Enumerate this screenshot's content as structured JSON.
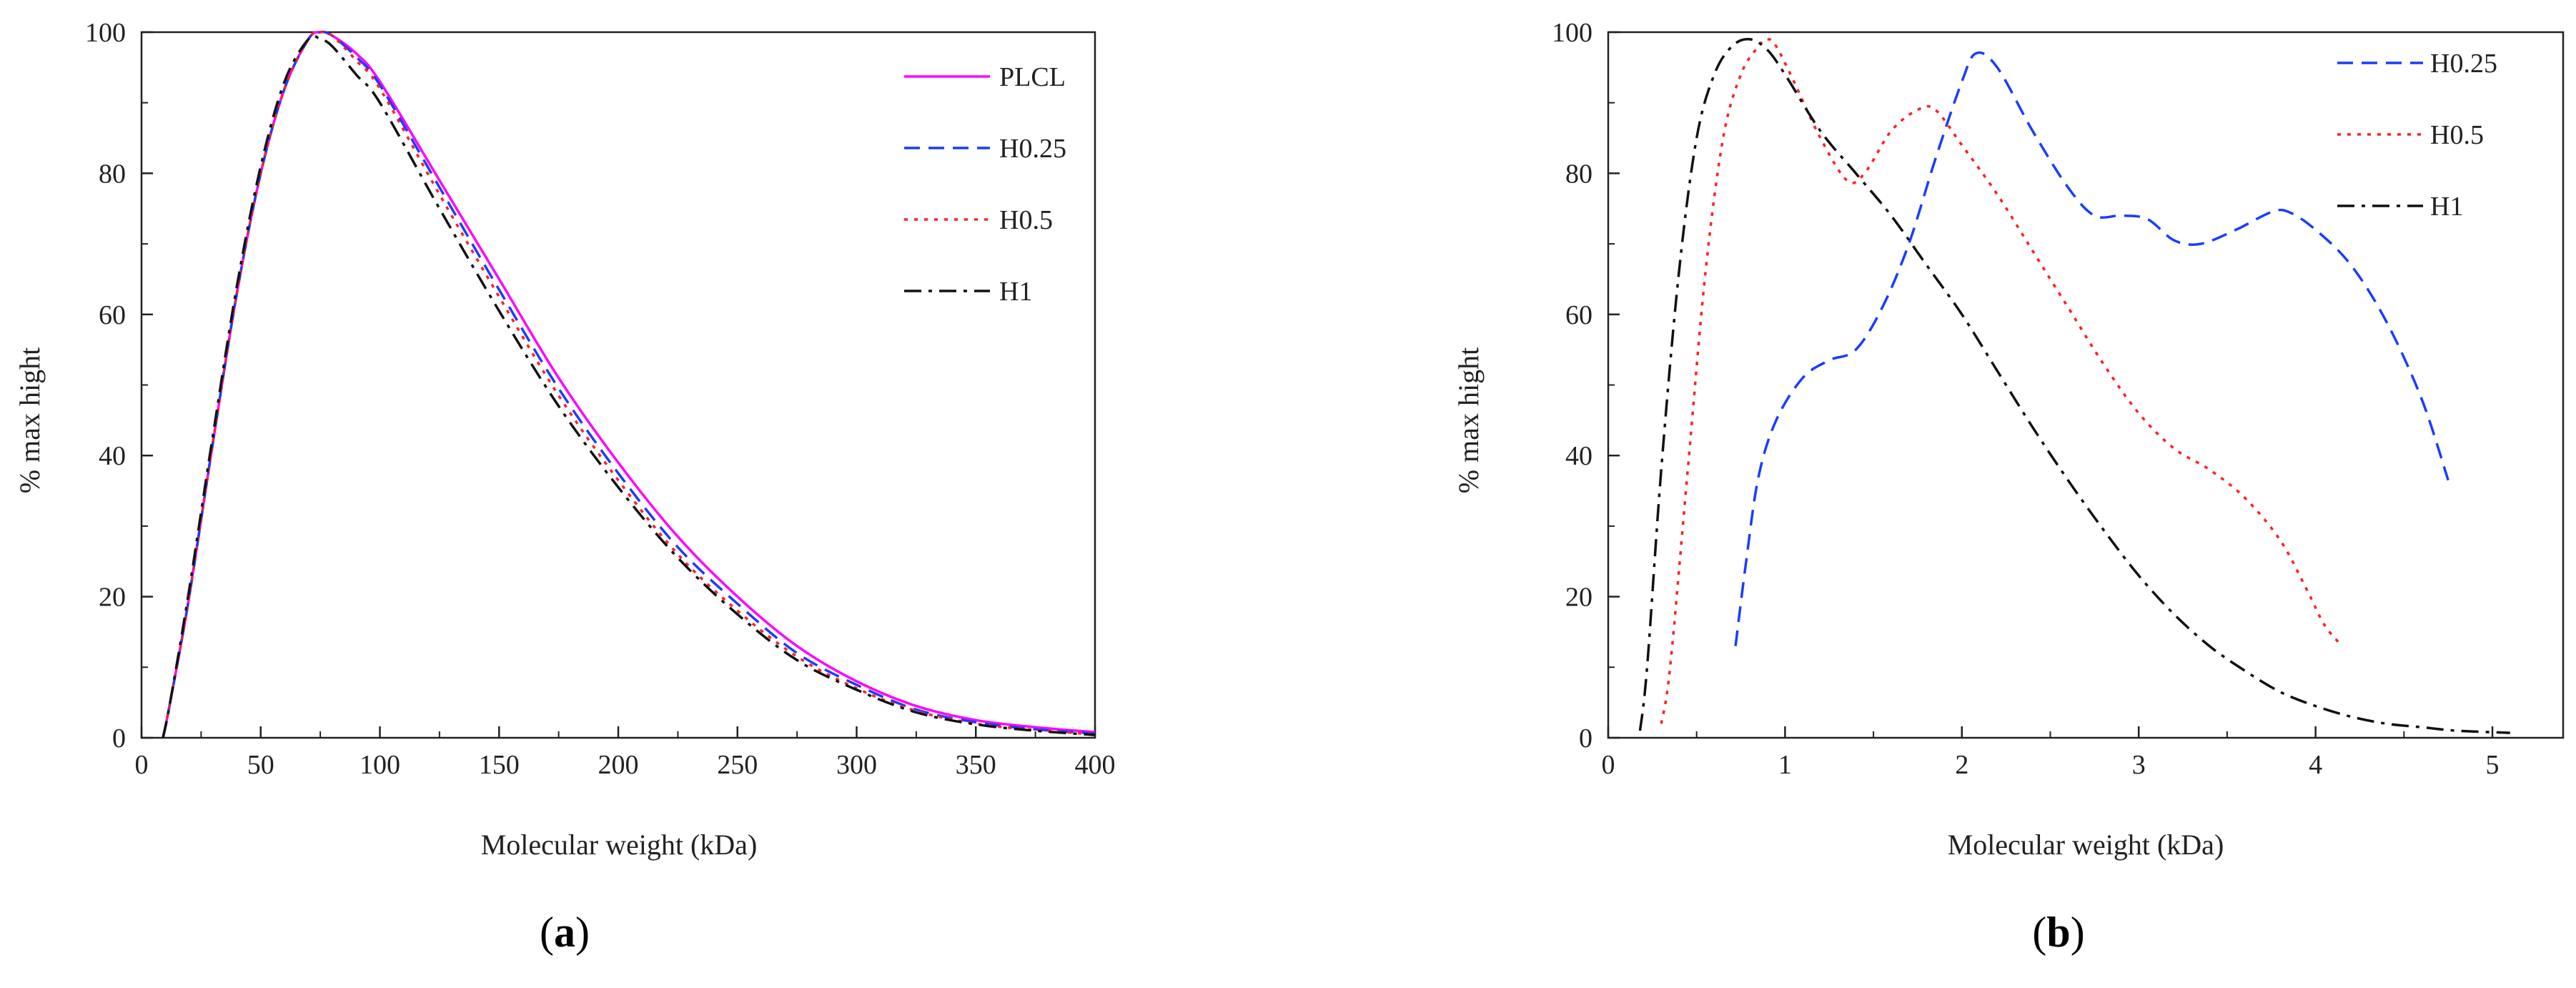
{
  "chart_data": [
    {
      "type": "line",
      "panel": "a",
      "xlabel": "Molecular weight (kDa)",
      "ylabel": "% max hight",
      "xlim": [
        0,
        400
      ],
      "ylim": [
        0,
        100
      ],
      "xticks": [
        0,
        50,
        100,
        150,
        200,
        250,
        300,
        350,
        400
      ],
      "yticks": [
        0,
        20,
        40,
        60,
        80,
        100
      ],
      "grid": false,
      "legend_position": "top-right",
      "series": [
        {
          "name": "PLCL",
          "color": "#ff00ff",
          "dash": "solid",
          "x": [
            9,
            12,
            20,
            30,
            40,
            50,
            60,
            70,
            75,
            80,
            90,
            100,
            125,
            150,
            175,
            200,
            225,
            250,
            275,
            300,
            325,
            350,
            375,
            400
          ],
          "y": [
            0,
            5,
            20,
            42,
            63,
            80,
            92,
            99,
            100,
            99.5,
            97,
            93,
            79,
            65,
            51,
            39,
            28.5,
            20,
            13,
            8,
            4.5,
            2.5,
            1.5,
            0.8
          ]
        },
        {
          "name": "H0.25",
          "color": "#1a3cff",
          "dash": "dashed",
          "x": [
            9,
            12,
            20,
            30,
            40,
            50,
            60,
            70,
            75,
            80,
            90,
            100,
            125,
            150,
            175,
            200,
            225,
            250,
            275,
            300,
            325,
            350,
            375,
            400
          ],
          "y": [
            0,
            5,
            20,
            42,
            63,
            80,
            92,
            99,
            100,
            99.5,
            96.5,
            92.5,
            78,
            63.5,
            49.5,
            37.5,
            27,
            19,
            12,
            7.5,
            4,
            2.2,
            1.2,
            0.6
          ]
        },
        {
          "name": "H0.5",
          "color": "#ff2020",
          "dash": "dotted",
          "x": [
            9,
            12,
            20,
            30,
            40,
            50,
            60,
            70,
            75,
            80,
            90,
            100,
            125,
            150,
            175,
            200,
            225,
            250,
            275,
            300,
            325,
            350,
            375,
            400
          ],
          "y": [
            0,
            5,
            20,
            42,
            63,
            80,
            92,
            99,
            100,
            99.5,
            96,
            92,
            77,
            62.5,
            48.5,
            36.5,
            26,
            18,
            11.5,
            7,
            3.8,
            2,
            1.1,
            0.5
          ]
        },
        {
          "name": "H1",
          "color": "#111111",
          "dash": "dashdot",
          "x": [
            9,
            12,
            20,
            30,
            40,
            50,
            60,
            70,
            75,
            80,
            90,
            100,
            125,
            150,
            175,
            200,
            225,
            250,
            275,
            300,
            325,
            350,
            375,
            400
          ],
          "y": [
            0,
            5,
            21,
            43,
            64,
            81,
            93,
            99,
            99,
            98,
            94,
            90,
            75,
            60.5,
            47,
            35.5,
            25.5,
            17.5,
            11,
            6.8,
            3.6,
            1.9,
            1,
            0.4
          ]
        }
      ]
    },
    {
      "type": "line",
      "panel": "b",
      "xlabel": "Molecular weight (kDa)",
      "ylabel": "% max hight",
      "xlim": [
        0,
        5.4
      ],
      "ylim": [
        0,
        100
      ],
      "xticks": [
        0,
        1,
        2,
        3,
        4,
        5
      ],
      "yticks": [
        0,
        20,
        40,
        60,
        80,
        100
      ],
      "grid": false,
      "legend_position": "top-right",
      "series": [
        {
          "name": "H0.25",
          "color": "#1a3cff",
          "dash": "dashed",
          "x": [
            0.72,
            0.78,
            0.85,
            0.95,
            1.1,
            1.25,
            1.4,
            1.55,
            1.7,
            1.85,
            2.0,
            2.08,
            2.2,
            2.4,
            2.6,
            2.75,
            2.9,
            3.05,
            3.2,
            3.35,
            3.55,
            3.75,
            3.85,
            4.0,
            4.2,
            4.4,
            4.6,
            4.75
          ],
          "y": [
            13,
            25,
            37,
            45,
            51,
            53.5,
            55,
            61,
            70,
            82,
            93,
            97,
            95,
            86,
            78,
            74,
            74,
            73.5,
            70.5,
            70,
            72,
            74.5,
            74.5,
            72,
            67,
            59,
            48,
            36.5
          ]
        },
        {
          "name": "H0.5",
          "color": "#ff2020",
          "dash": "dotted",
          "x": [
            0.3,
            0.35,
            0.45,
            0.55,
            0.65,
            0.75,
            0.85,
            0.9,
            0.95,
            1.05,
            1.2,
            1.35,
            1.45,
            1.6,
            1.75,
            1.85,
            2.0,
            2.2,
            2.4,
            2.6,
            2.8,
            3.0,
            3.2,
            3.4,
            3.6,
            3.8,
            3.95,
            4.05,
            4.15
          ],
          "y": [
            2,
            10,
            38,
            66,
            85,
            94,
            98,
            99,
            98,
            93,
            85,
            79,
            80,
            86,
            89,
            89,
            84,
            77,
            69,
            61,
            53,
            46,
            41,
            38,
            34,
            28,
            21,
            16,
            13
          ]
        },
        {
          "name": "H1",
          "color": "#111111",
          "dash": "dashdot",
          "x": [
            0.18,
            0.22,
            0.3,
            0.4,
            0.5,
            0.6,
            0.7,
            0.8,
            0.9,
            1.0,
            1.2,
            1.4,
            1.6,
            1.8,
            2.0,
            2.2,
            2.4,
            2.6,
            2.8,
            3.0,
            3.2,
            3.4,
            3.6,
            3.8,
            4.0,
            4.2,
            4.4,
            4.6,
            4.8,
            5.1
          ],
          "y": [
            1,
            10,
            38,
            66,
            85,
            94,
            98,
            99,
            97.5,
            94,
            86,
            80,
            74,
            67,
            60,
            52,
            44,
            36.5,
            29.5,
            23,
            17.5,
            13,
            9.5,
            6.5,
            4.5,
            3,
            2,
            1.5,
            1,
            0.7
          ]
        }
      ]
    }
  ],
  "panels": {
    "a": {
      "label": "a"
    },
    "b": {
      "label": "b"
    }
  }
}
